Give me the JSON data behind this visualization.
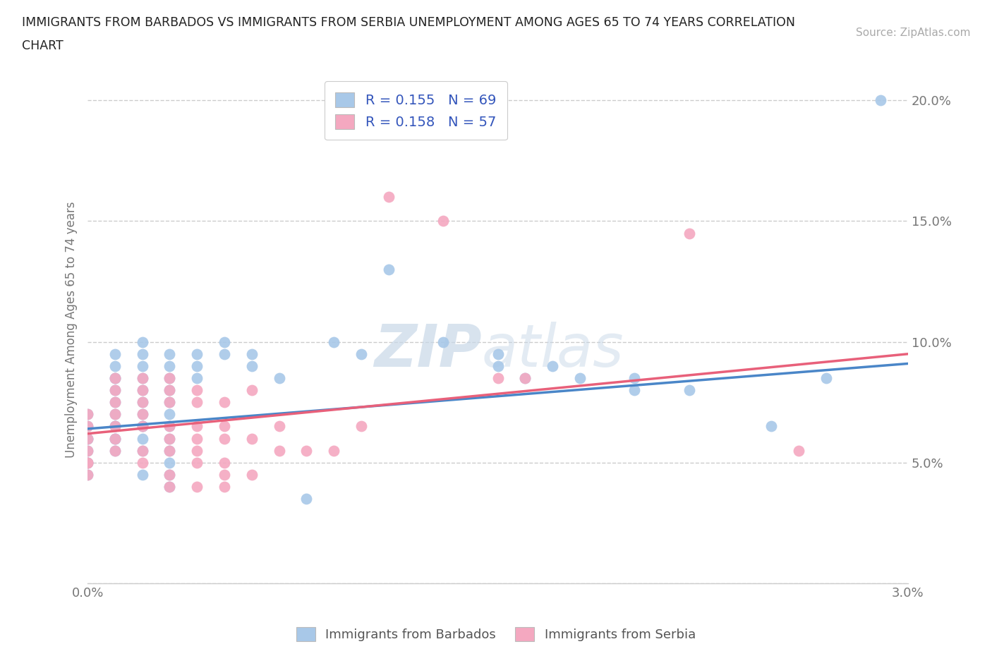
{
  "title_line1": "IMMIGRANTS FROM BARBADOS VS IMMIGRANTS FROM SERBIA UNEMPLOYMENT AMONG AGES 65 TO 74 YEARS CORRELATION",
  "title_line2": "CHART",
  "source": "Source: ZipAtlas.com",
  "ylabel": "Unemployment Among Ages 65 to 74 years",
  "xlim": [
    0.0,
    0.03
  ],
  "ylim": [
    0.0,
    0.21
  ],
  "xticks": [
    0.0,
    0.005,
    0.01,
    0.015,
    0.02,
    0.025,
    0.03
  ],
  "xticklabels": [
    "0.0%",
    "",
    "",
    "",
    "",
    "",
    "3.0%"
  ],
  "yticks": [
    0.0,
    0.05,
    0.1,
    0.15,
    0.2
  ],
  "yticklabels": [
    "",
    "5.0%",
    "10.0%",
    "15.0%",
    "20.0%"
  ],
  "barbados_color": "#a8c8e8",
  "serbia_color": "#f4a8c0",
  "barbados_line_color": "#4a86c8",
  "serbia_line_color": "#e8607a",
  "R_barbados": 0.155,
  "N_barbados": 69,
  "R_serbia": 0.158,
  "N_serbia": 57,
  "legend_label_barbados": "Immigrants from Barbados",
  "legend_label_serbia": "Immigrants from Serbia",
  "watermark_zip": "ZIP",
  "watermark_atlas": "atlas",
  "background_color": "#ffffff",
  "grid_color": "#cccccc",
  "barbados_scatter": [
    [
      0.0,
      0.07
    ],
    [
      0.0,
      0.065
    ],
    [
      0.0,
      0.06
    ],
    [
      0.0,
      0.06
    ],
    [
      0.0,
      0.055
    ],
    [
      0.0,
      0.05
    ],
    [
      0.0,
      0.05
    ],
    [
      0.0,
      0.045
    ],
    [
      0.001,
      0.095
    ],
    [
      0.001,
      0.09
    ],
    [
      0.001,
      0.085
    ],
    [
      0.001,
      0.085
    ],
    [
      0.001,
      0.08
    ],
    [
      0.001,
      0.075
    ],
    [
      0.001,
      0.07
    ],
    [
      0.001,
      0.065
    ],
    [
      0.001,
      0.065
    ],
    [
      0.001,
      0.06
    ],
    [
      0.001,
      0.06
    ],
    [
      0.001,
      0.055
    ],
    [
      0.002,
      0.1
    ],
    [
      0.002,
      0.095
    ],
    [
      0.002,
      0.09
    ],
    [
      0.002,
      0.085
    ],
    [
      0.002,
      0.08
    ],
    [
      0.002,
      0.075
    ],
    [
      0.002,
      0.07
    ],
    [
      0.002,
      0.065
    ],
    [
      0.002,
      0.065
    ],
    [
      0.002,
      0.06
    ],
    [
      0.002,
      0.055
    ],
    [
      0.002,
      0.045
    ],
    [
      0.003,
      0.095
    ],
    [
      0.003,
      0.09
    ],
    [
      0.003,
      0.085
    ],
    [
      0.003,
      0.08
    ],
    [
      0.003,
      0.075
    ],
    [
      0.003,
      0.07
    ],
    [
      0.003,
      0.065
    ],
    [
      0.003,
      0.06
    ],
    [
      0.003,
      0.055
    ],
    [
      0.003,
      0.05
    ],
    [
      0.003,
      0.045
    ],
    [
      0.003,
      0.04
    ],
    [
      0.004,
      0.095
    ],
    [
      0.004,
      0.09
    ],
    [
      0.004,
      0.085
    ],
    [
      0.005,
      0.1
    ],
    [
      0.005,
      0.095
    ],
    [
      0.006,
      0.095
    ],
    [
      0.006,
      0.09
    ],
    [
      0.007,
      0.085
    ],
    [
      0.008,
      0.035
    ],
    [
      0.009,
      0.1
    ],
    [
      0.01,
      0.095
    ],
    [
      0.011,
      0.13
    ],
    [
      0.013,
      0.1
    ],
    [
      0.015,
      0.095
    ],
    [
      0.015,
      0.09
    ],
    [
      0.016,
      0.085
    ],
    [
      0.017,
      0.09
    ],
    [
      0.018,
      0.085
    ],
    [
      0.02,
      0.085
    ],
    [
      0.02,
      0.08
    ],
    [
      0.022,
      0.08
    ],
    [
      0.025,
      0.065
    ],
    [
      0.027,
      0.085
    ],
    [
      0.029,
      0.2
    ]
  ],
  "serbia_scatter": [
    [
      0.0,
      0.07
    ],
    [
      0.0,
      0.065
    ],
    [
      0.0,
      0.06
    ],
    [
      0.0,
      0.055
    ],
    [
      0.0,
      0.05
    ],
    [
      0.0,
      0.05
    ],
    [
      0.0,
      0.045
    ],
    [
      0.001,
      0.085
    ],
    [
      0.001,
      0.08
    ],
    [
      0.001,
      0.075
    ],
    [
      0.001,
      0.07
    ],
    [
      0.001,
      0.065
    ],
    [
      0.001,
      0.06
    ],
    [
      0.001,
      0.055
    ],
    [
      0.002,
      0.085
    ],
    [
      0.002,
      0.08
    ],
    [
      0.002,
      0.075
    ],
    [
      0.002,
      0.07
    ],
    [
      0.002,
      0.065
    ],
    [
      0.002,
      0.055
    ],
    [
      0.002,
      0.05
    ],
    [
      0.003,
      0.085
    ],
    [
      0.003,
      0.08
    ],
    [
      0.003,
      0.075
    ],
    [
      0.003,
      0.065
    ],
    [
      0.003,
      0.06
    ],
    [
      0.003,
      0.055
    ],
    [
      0.003,
      0.045
    ],
    [
      0.003,
      0.04
    ],
    [
      0.004,
      0.08
    ],
    [
      0.004,
      0.075
    ],
    [
      0.004,
      0.065
    ],
    [
      0.004,
      0.06
    ],
    [
      0.004,
      0.055
    ],
    [
      0.004,
      0.05
    ],
    [
      0.004,
      0.04
    ],
    [
      0.005,
      0.075
    ],
    [
      0.005,
      0.065
    ],
    [
      0.005,
      0.06
    ],
    [
      0.005,
      0.05
    ],
    [
      0.005,
      0.045
    ],
    [
      0.005,
      0.04
    ],
    [
      0.006,
      0.08
    ],
    [
      0.006,
      0.06
    ],
    [
      0.006,
      0.045
    ],
    [
      0.007,
      0.065
    ],
    [
      0.007,
      0.055
    ],
    [
      0.008,
      0.055
    ],
    [
      0.009,
      0.055
    ],
    [
      0.01,
      0.065
    ],
    [
      0.011,
      0.16
    ],
    [
      0.013,
      0.15
    ],
    [
      0.015,
      0.085
    ],
    [
      0.016,
      0.085
    ],
    [
      0.022,
      0.145
    ],
    [
      0.026,
      0.055
    ]
  ],
  "reg_barbados": [
    0.064,
    0.091
  ],
  "reg_serbia": [
    0.062,
    0.095
  ]
}
